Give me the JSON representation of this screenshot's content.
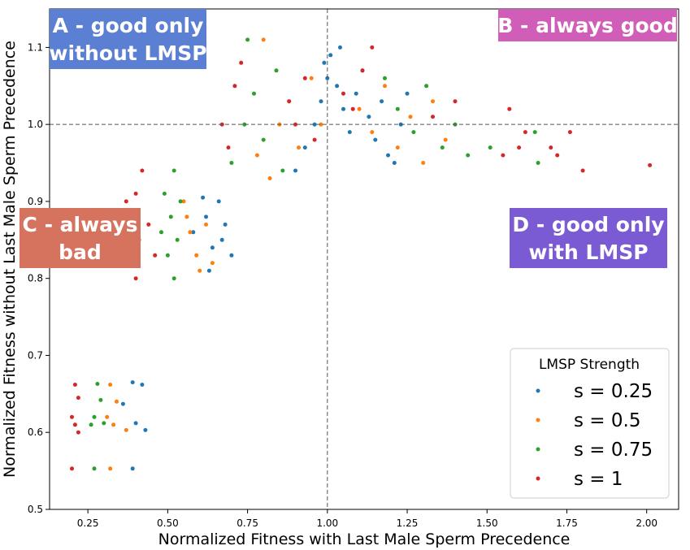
{
  "chart_data": {
    "type": "scatter",
    "xlabel": "Normalized Fitness with Last Male Sperm Precedence",
    "ylabel": "Normalized Fitness without Last Male Sperm Precedence",
    "xlim": [
      0.13,
      2.1
    ],
    "ylim": [
      0.5,
      1.15
    ],
    "x_ticks": [
      "0.25",
      "0.50",
      "0.75",
      "1.00",
      "1.25",
      "1.50",
      "1.75",
      "2.00"
    ],
    "y_ticks": [
      "0.5",
      "0.6",
      "0.7",
      "0.8",
      "0.9",
      "1.0",
      "1.1"
    ],
    "reference_lines": {
      "x": 1.0,
      "y": 1.0,
      "style": "dashed"
    },
    "grid": false,
    "legend": {
      "title": "LMSP Strength",
      "placement": "lower-right",
      "entries": [
        "s = 0.25",
        "s = 0.5",
        "s = 0.75",
        "s = 1"
      ]
    },
    "quadrant_labels": [
      {
        "lines": [
          "A - good only",
          "without LMSP"
        ],
        "color": "#5b7fd3",
        "position": "top-left"
      },
      {
        "lines": [
          "B - always good"
        ],
        "color": "#d05db7",
        "position": "top-right"
      },
      {
        "lines": [
          "C - always",
          "bad"
        ],
        "color": "#d5735f",
        "position": "middle-left"
      },
      {
        "lines": [
          "D - good only",
          "with LMSP"
        ],
        "color": "#7b5bd3",
        "position": "middle-right"
      }
    ],
    "series": [
      {
        "name": "s = 0.25",
        "color": "#1f77b4",
        "points": [
          [
            0.39,
            0.665
          ],
          [
            0.42,
            0.662
          ],
          [
            0.36,
            0.637
          ],
          [
            0.4,
            0.612
          ],
          [
            0.43,
            0.603
          ],
          [
            0.39,
            0.553
          ],
          [
            0.58,
            0.86
          ],
          [
            0.62,
            0.88
          ],
          [
            0.64,
            0.84
          ],
          [
            0.66,
            0.9
          ],
          [
            0.68,
            0.87
          ],
          [
            0.63,
            0.81
          ],
          [
            0.7,
            0.83
          ],
          [
            0.61,
            0.905
          ],
          [
            0.67,
            0.85
          ],
          [
            0.9,
            0.94
          ],
          [
            0.93,
            0.97
          ],
          [
            0.96,
            1.0
          ],
          [
            0.98,
            1.03
          ],
          [
            1.0,
            1.06
          ],
          [
            1.01,
            1.09
          ],
          [
            1.03,
            1.05
          ],
          [
            1.05,
            1.02
          ],
          [
            1.07,
            0.99
          ],
          [
            1.09,
            1.04
          ],
          [
            1.11,
            1.07
          ],
          [
            1.13,
            1.01
          ],
          [
            1.15,
            0.98
          ],
          [
            1.17,
            1.03
          ],
          [
            1.19,
            0.96
          ],
          [
            1.21,
            0.95
          ],
          [
            1.23,
            1.0
          ],
          [
            1.25,
            1.04
          ],
          [
            0.99,
            1.08
          ],
          [
            1.04,
            1.1
          ]
        ]
      },
      {
        "name": "s = 0.5",
        "color": "#ff7f0e",
        "points": [
          [
            0.32,
            0.662
          ],
          [
            0.34,
            0.64
          ],
          [
            0.31,
            0.62
          ],
          [
            0.33,
            0.61
          ],
          [
            0.37,
            0.603
          ],
          [
            0.32,
            0.553
          ],
          [
            0.55,
            0.9
          ],
          [
            0.57,
            0.86
          ],
          [
            0.59,
            0.83
          ],
          [
            0.62,
            0.87
          ],
          [
            0.64,
            0.82
          ],
          [
            0.56,
            0.88
          ],
          [
            0.6,
            0.81
          ],
          [
            0.78,
            0.96
          ],
          [
            0.82,
            0.93
          ],
          [
            0.85,
            1.0
          ],
          [
            0.88,
            1.03
          ],
          [
            0.91,
            0.97
          ],
          [
            0.95,
            1.06
          ],
          [
            0.98,
            1.0
          ],
          [
            1.1,
            1.02
          ],
          [
            1.14,
            0.99
          ],
          [
            1.18,
            1.05
          ],
          [
            1.22,
            0.97
          ],
          [
            1.26,
            1.01
          ],
          [
            1.3,
            0.95
          ],
          [
            1.33,
            1.03
          ],
          [
            1.37,
            0.98
          ],
          [
            0.8,
            1.11
          ]
        ]
      },
      {
        "name": "s = 0.75",
        "color": "#2ca02c",
        "points": [
          [
            0.28,
            0.663
          ],
          [
            0.29,
            0.642
          ],
          [
            0.27,
            0.62
          ],
          [
            0.3,
            0.612
          ],
          [
            0.26,
            0.61
          ],
          [
            0.27,
            0.553
          ],
          [
            0.49,
            0.91
          ],
          [
            0.51,
            0.88
          ],
          [
            0.53,
            0.85
          ],
          [
            0.52,
            0.8
          ],
          [
            0.5,
            0.83
          ],
          [
            0.54,
            0.9
          ],
          [
            0.48,
            0.86
          ],
          [
            0.52,
            0.94
          ],
          [
            0.7,
            0.95
          ],
          [
            0.74,
            1.0
          ],
          [
            0.77,
            1.04
          ],
          [
            0.8,
            0.98
          ],
          [
            0.84,
            1.07
          ],
          [
            0.86,
            0.94
          ],
          [
            0.75,
            1.11
          ],
          [
            1.18,
            1.06
          ],
          [
            1.22,
            1.02
          ],
          [
            1.27,
            0.99
          ],
          [
            1.31,
            1.05
          ],
          [
            1.36,
            0.97
          ],
          [
            1.4,
            1.0
          ],
          [
            1.44,
            0.96
          ],
          [
            1.51,
            0.97
          ],
          [
            1.66,
            0.95
          ],
          [
            1.65,
            0.99
          ]
        ]
      },
      {
        "name": "s = 1",
        "color": "#d62728",
        "points": [
          [
            0.21,
            0.662
          ],
          [
            0.22,
            0.645
          ],
          [
            0.2,
            0.62
          ],
          [
            0.21,
            0.61
          ],
          [
            0.22,
            0.6
          ],
          [
            0.2,
            0.553
          ],
          [
            0.42,
            0.94
          ],
          [
            0.4,
            0.91
          ],
          [
            0.38,
            0.88
          ],
          [
            0.41,
            0.85
          ],
          [
            0.4,
            0.8
          ],
          [
            0.44,
            0.87
          ],
          [
            0.46,
            0.83
          ],
          [
            0.37,
            0.9
          ],
          [
            0.67,
            1.0
          ],
          [
            0.69,
            0.97
          ],
          [
            0.71,
            1.05
          ],
          [
            0.73,
            1.08
          ],
          [
            0.88,
            1.03
          ],
          [
            0.9,
            1.0
          ],
          [
            0.93,
            1.06
          ],
          [
            0.96,
            0.98
          ],
          [
            1.05,
            1.04
          ],
          [
            1.08,
            1.02
          ],
          [
            1.11,
            1.07
          ],
          [
            1.14,
            1.1
          ],
          [
            1.33,
            1.01
          ],
          [
            1.4,
            1.03
          ],
          [
            1.55,
            0.96
          ],
          [
            1.57,
            1.02
          ],
          [
            1.6,
            0.97
          ],
          [
            1.62,
            0.99
          ],
          [
            1.7,
            0.97
          ],
          [
            1.72,
            0.96
          ],
          [
            1.76,
            0.99
          ],
          [
            1.8,
            0.94
          ],
          [
            2.01,
            0.947
          ]
        ]
      }
    ]
  }
}
